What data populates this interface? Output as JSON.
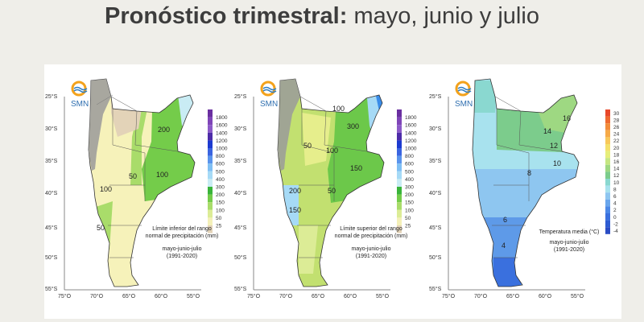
{
  "header": {
    "title_bold": "Pronóstico trimestral:",
    "title_rest": " mayo, junio y julio"
  },
  "brand": {
    "logo_text": "SMN"
  },
  "axes": {
    "lat_labels": [
      "25°S",
      "30°S",
      "35°S",
      "40°S",
      "45°S",
      "50°S",
      "55°S"
    ],
    "lon_labels": [
      "75°O",
      "70°O",
      "65°O",
      "60°O",
      "55°O"
    ],
    "lon_labels_map3": [
      "75°O",
      "70°O",
      "65°O",
      "60°O",
      "55°O"
    ]
  },
  "maps": [
    {
      "id": "lower",
      "caption_line1": "Límite inferior del rango",
      "caption_line2": "normal de precipitación (mm)",
      "period": "mayo-junio-julio",
      "reference": "(1991-2020)",
      "contours": [
        "200",
        "100",
        "50",
        "100",
        "50"
      ],
      "legend": {
        "labels": [
          "1800",
          "1600",
          "1400",
          "1200",
          "1000",
          "800",
          "600",
          "500",
          "400",
          "300",
          "200",
          "150",
          "100",
          "50",
          "25"
        ],
        "colors": [
          "#6a2fa0",
          "#7f45b8",
          "#8c5ac8",
          "#4d2ca8",
          "#1c3ad0",
          "#3a64e0",
          "#5a94ec",
          "#7fbff4",
          "#a6daf6",
          "#c9ecf4",
          "#3ab43a",
          "#74cc4a",
          "#a9dc6a",
          "#dcec96",
          "#f4f0b8",
          "#e3d3b8"
        ]
      }
    },
    {
      "id": "upper",
      "caption_line1": "Límite superior del rango",
      "caption_line2": "normal de precipitación (mm)",
      "period": "mayo-junio-julio",
      "reference": "(1991-2020)",
      "contours": [
        "300",
        "150",
        "100",
        "50",
        "200",
        "100",
        "150",
        "50"
      ],
      "legend": {
        "labels": [
          "1800",
          "1600",
          "1400",
          "1200",
          "1000",
          "800",
          "600",
          "500",
          "400",
          "300",
          "200",
          "150",
          "100",
          "50",
          "25"
        ],
        "colors": [
          "#6a2fa0",
          "#7f45b8",
          "#8c5ac8",
          "#4d2ca8",
          "#1c3ad0",
          "#3a64e0",
          "#5a94ec",
          "#7fbff4",
          "#a6daf6",
          "#c9ecf4",
          "#3ab43a",
          "#74cc4a",
          "#a9dc6a",
          "#dcec96",
          "#f4f0b8",
          "#e3d3b8"
        ]
      }
    },
    {
      "id": "temperature",
      "caption_line1": "Temperatura media (°C)",
      "caption_line2": "",
      "period": "mayo-junio-julio",
      "reference": "(1991-2020)",
      "contours": [
        "16",
        "14",
        "12",
        "10",
        "8",
        "6",
        "4"
      ],
      "legend": {
        "labels": [
          "30",
          "28",
          "26",
          "24",
          "22",
          "20",
          "18",
          "16",
          "14",
          "12",
          "10",
          "8",
          "6",
          "4",
          "2",
          "0",
          "-2",
          "-4"
        ],
        "colors": [
          "#e8482a",
          "#ee6a30",
          "#f28c3a",
          "#f6aa48",
          "#f8c85a",
          "#f4e06a",
          "#e6ee7a",
          "#c6e682",
          "#9ed882",
          "#7ccc8c",
          "#8ad8d0",
          "#a8e2ee",
          "#8ec6f0",
          "#6aa6ec",
          "#4c88e6",
          "#3a70de",
          "#2e5cd2",
          "#2a4cc4"
        ]
      }
    }
  ]
}
